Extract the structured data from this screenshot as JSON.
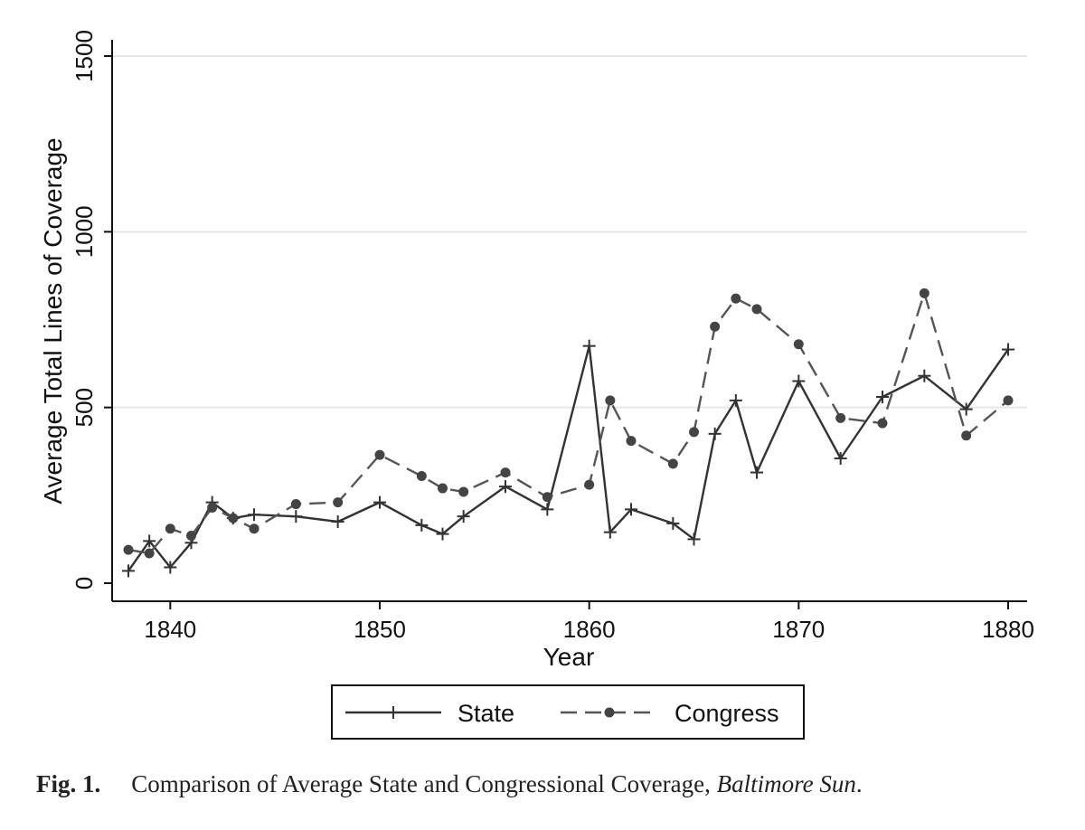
{
  "chart_data": {
    "type": "line",
    "title": "",
    "xlabel": "Year",
    "ylabel": "Average Total Lines of Coverage",
    "xlim": [
      1837.5,
      1880.8
    ],
    "ylim": [
      -50,
      1550
    ],
    "xticks": [
      1840,
      1850,
      1860,
      1870,
      1880
    ],
    "yticks": [
      0,
      500,
      1000,
      1500
    ],
    "grid": "horizontal",
    "legend_position": "bottom",
    "series": [
      {
        "name": "State",
        "style": "solid",
        "marker": "plus",
        "points": [
          [
            1838,
            35
          ],
          [
            1839,
            120
          ],
          [
            1840,
            45
          ],
          [
            1841,
            115
          ],
          [
            1842,
            230
          ],
          [
            1843,
            185
          ],
          [
            1844,
            195
          ],
          [
            1846,
            190
          ],
          [
            1848,
            175
          ],
          [
            1850,
            230
          ],
          [
            1852,
            165
          ],
          [
            1853,
            140
          ],
          [
            1854,
            190
          ],
          [
            1856,
            275
          ],
          [
            1858,
            210
          ],
          [
            1860,
            675
          ],
          [
            1861,
            145
          ],
          [
            1862,
            210
          ],
          [
            1864,
            170
          ],
          [
            1865,
            125
          ],
          [
            1866,
            425
          ],
          [
            1867,
            520
          ],
          [
            1868,
            315
          ],
          [
            1870,
            575
          ],
          [
            1872,
            355
          ],
          [
            1874,
            530
          ],
          [
            1876,
            590
          ],
          [
            1878,
            495
          ],
          [
            1880,
            665
          ]
        ]
      },
      {
        "name": "Congress",
        "style": "dashed",
        "marker": "circle",
        "points": [
          [
            1838,
            95
          ],
          [
            1839,
            85
          ],
          [
            1840,
            155
          ],
          [
            1841,
            135
          ],
          [
            1842,
            215
          ],
          [
            1843,
            185
          ],
          [
            1844,
            155
          ],
          [
            1846,
            225
          ],
          [
            1848,
            230
          ],
          [
            1850,
            365
          ],
          [
            1852,
            305
          ],
          [
            1853,
            270
          ],
          [
            1854,
            260
          ],
          [
            1856,
            315
          ],
          [
            1858,
            245
          ],
          [
            1860,
            280
          ],
          [
            1861,
            520
          ],
          [
            1862,
            405
          ],
          [
            1864,
            340
          ],
          [
            1865,
            430
          ],
          [
            1866,
            730
          ],
          [
            1867,
            810
          ],
          [
            1868,
            780
          ],
          [
            1870,
            680
          ],
          [
            1872,
            470
          ],
          [
            1874,
            455
          ],
          [
            1876,
            825
          ],
          [
            1878,
            420
          ],
          [
            1880,
            520
          ]
        ]
      }
    ]
  },
  "caption": {
    "label": "Fig. 1.",
    "text": "Comparison of Average State and Congressional Coverage, ",
    "source": "Baltimore Sun",
    "end": "."
  }
}
